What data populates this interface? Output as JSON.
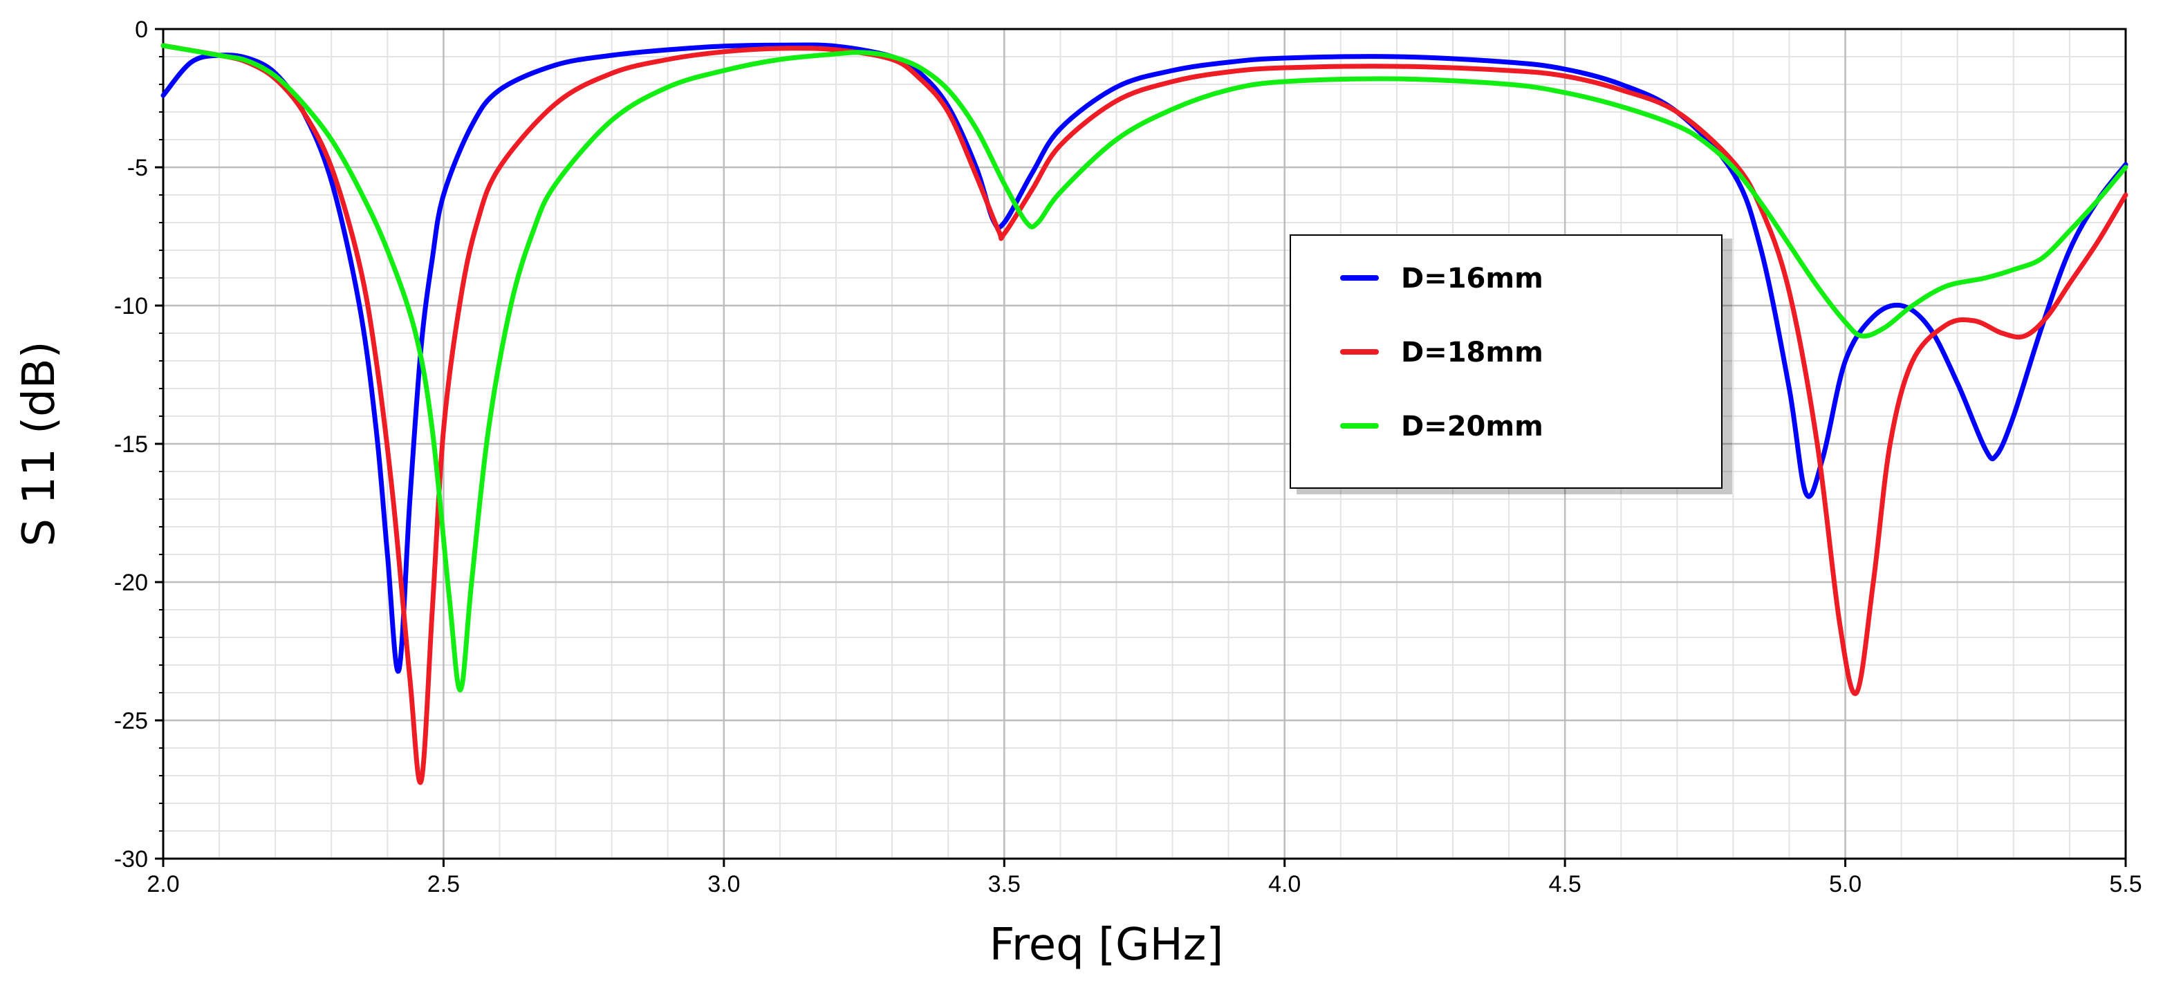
{
  "chart_data": {
    "type": "line",
    "title": "",
    "xlabel": "Freq [GHz]",
    "ylabel": "S 11 (dB)",
    "xlim": [
      2.0,
      5.5
    ],
    "ylim": [
      -30,
      0
    ],
    "x_ticks": [
      2.0,
      2.5,
      3.0,
      3.5,
      4.0,
      4.5,
      5.0,
      5.5
    ],
    "x_tick_labels": [
      "2.0",
      "2.5",
      "3.0",
      "3.5",
      "4.0",
      "4.5",
      "5.0",
      "5.5"
    ],
    "y_ticks": [
      0,
      -5,
      -10,
      -15,
      -20,
      -25,
      -30
    ],
    "y_tick_labels": [
      "0",
      "-5",
      "-10",
      "-15",
      "-20",
      "-25",
      "-30"
    ],
    "grid": true,
    "legend_position": "right-center",
    "series": [
      {
        "name": "D=16mm",
        "color": "#0000ff",
        "points": [
          [
            2.0,
            -2.4
          ],
          [
            2.05,
            -1.2
          ],
          [
            2.1,
            -0.95
          ],
          [
            2.15,
            -1.05
          ],
          [
            2.2,
            -1.6
          ],
          [
            2.25,
            -3.0
          ],
          [
            2.3,
            -5.5
          ],
          [
            2.35,
            -10.0
          ],
          [
            2.38,
            -14.5
          ],
          [
            2.4,
            -19.0
          ],
          [
            2.42,
            -23.2
          ],
          [
            2.44,
            -17.0
          ],
          [
            2.46,
            -11.5
          ],
          [
            2.48,
            -8.3
          ],
          [
            2.5,
            -6.0
          ],
          [
            2.55,
            -3.5
          ],
          [
            2.6,
            -2.2
          ],
          [
            2.7,
            -1.3
          ],
          [
            2.8,
            -0.95
          ],
          [
            2.9,
            -0.75
          ],
          [
            3.0,
            -0.62
          ],
          [
            3.1,
            -0.58
          ],
          [
            3.2,
            -0.62
          ],
          [
            3.3,
            -1.0
          ],
          [
            3.35,
            -1.6
          ],
          [
            3.4,
            -2.8
          ],
          [
            3.45,
            -5.0
          ],
          [
            3.48,
            -6.9
          ],
          [
            3.5,
            -7.0
          ],
          [
            3.55,
            -5.2
          ],
          [
            3.6,
            -3.6
          ],
          [
            3.7,
            -2.1
          ],
          [
            3.8,
            -1.5
          ],
          [
            3.9,
            -1.2
          ],
          [
            4.0,
            -1.05
          ],
          [
            4.2,
            -1.0
          ],
          [
            4.4,
            -1.2
          ],
          [
            4.5,
            -1.45
          ],
          [
            4.6,
            -2.0
          ],
          [
            4.7,
            -3.0
          ],
          [
            4.8,
            -5.2
          ],
          [
            4.85,
            -8.0
          ],
          [
            4.9,
            -13.0
          ],
          [
            4.93,
            -16.8
          ],
          [
            4.96,
            -15.5
          ],
          [
            5.0,
            -12.0
          ],
          [
            5.05,
            -10.4
          ],
          [
            5.1,
            -10.0
          ],
          [
            5.15,
            -10.8
          ],
          [
            5.2,
            -12.8
          ],
          [
            5.25,
            -15.2
          ],
          [
            5.27,
            -15.4
          ],
          [
            5.3,
            -14.0
          ],
          [
            5.35,
            -10.8
          ],
          [
            5.4,
            -8.0
          ],
          [
            5.45,
            -6.2
          ],
          [
            5.5,
            -4.9
          ]
        ]
      },
      {
        "name": "D=18mm",
        "color": "#ee1c24",
        "points": [
          [
            2.0,
            -0.6
          ],
          [
            2.1,
            -0.95
          ],
          [
            2.15,
            -1.2
          ],
          [
            2.2,
            -1.8
          ],
          [
            2.25,
            -3.0
          ],
          [
            2.3,
            -5.0
          ],
          [
            2.35,
            -8.5
          ],
          [
            2.38,
            -12.0
          ],
          [
            2.41,
            -17.0
          ],
          [
            2.44,
            -23.5
          ],
          [
            2.46,
            -27.2
          ],
          [
            2.48,
            -21.0
          ],
          [
            2.5,
            -14.5
          ],
          [
            2.53,
            -9.8
          ],
          [
            2.56,
            -7.0
          ],
          [
            2.6,
            -5.0
          ],
          [
            2.7,
            -2.7
          ],
          [
            2.8,
            -1.6
          ],
          [
            2.9,
            -1.1
          ],
          [
            3.0,
            -0.82
          ],
          [
            3.1,
            -0.7
          ],
          [
            3.2,
            -0.75
          ],
          [
            3.3,
            -1.1
          ],
          [
            3.35,
            -1.8
          ],
          [
            3.4,
            -3.0
          ],
          [
            3.45,
            -5.3
          ],
          [
            3.49,
            -7.3
          ],
          [
            3.5,
            -7.4
          ],
          [
            3.55,
            -5.8
          ],
          [
            3.6,
            -4.2
          ],
          [
            3.7,
            -2.6
          ],
          [
            3.8,
            -1.9
          ],
          [
            3.9,
            -1.55
          ],
          [
            4.0,
            -1.4
          ],
          [
            4.2,
            -1.35
          ],
          [
            4.4,
            -1.5
          ],
          [
            4.5,
            -1.7
          ],
          [
            4.6,
            -2.2
          ],
          [
            4.7,
            -3.0
          ],
          [
            4.8,
            -4.8
          ],
          [
            4.85,
            -6.5
          ],
          [
            4.9,
            -9.5
          ],
          [
            4.95,
            -15.0
          ],
          [
            4.99,
            -21.5
          ],
          [
            5.02,
            -24.0
          ],
          [
            5.05,
            -20.0
          ],
          [
            5.08,
            -15.0
          ],
          [
            5.12,
            -12.0
          ],
          [
            5.18,
            -10.7
          ],
          [
            5.23,
            -10.55
          ],
          [
            5.28,
            -11.0
          ],
          [
            5.32,
            -11.1
          ],
          [
            5.36,
            -10.4
          ],
          [
            5.4,
            -9.2
          ],
          [
            5.45,
            -7.7
          ],
          [
            5.5,
            -6.0
          ]
        ]
      },
      {
        "name": "D=20mm",
        "color": "#12ee12",
        "points": [
          [
            2.0,
            -0.6
          ],
          [
            2.1,
            -0.95
          ],
          [
            2.15,
            -1.15
          ],
          [
            2.2,
            -1.7
          ],
          [
            2.25,
            -2.7
          ],
          [
            2.3,
            -4.0
          ],
          [
            2.35,
            -5.8
          ],
          [
            2.4,
            -8.0
          ],
          [
            2.45,
            -11.0
          ],
          [
            2.48,
            -14.5
          ],
          [
            2.51,
            -20.5
          ],
          [
            2.53,
            -23.9
          ],
          [
            2.55,
            -20.0
          ],
          [
            2.58,
            -14.5
          ],
          [
            2.62,
            -10.0
          ],
          [
            2.66,
            -7.3
          ],
          [
            2.7,
            -5.6
          ],
          [
            2.8,
            -3.3
          ],
          [
            2.9,
            -2.1
          ],
          [
            3.0,
            -1.5
          ],
          [
            3.1,
            -1.1
          ],
          [
            3.2,
            -0.9
          ],
          [
            3.25,
            -0.85
          ],
          [
            3.3,
            -1.0
          ],
          [
            3.35,
            -1.4
          ],
          [
            3.4,
            -2.2
          ],
          [
            3.45,
            -3.6
          ],
          [
            3.5,
            -5.6
          ],
          [
            3.54,
            -7.0
          ],
          [
            3.56,
            -7.0
          ],
          [
            3.6,
            -5.9
          ],
          [
            3.7,
            -4.0
          ],
          [
            3.8,
            -2.9
          ],
          [
            3.9,
            -2.2
          ],
          [
            4.0,
            -1.9
          ],
          [
            4.2,
            -1.8
          ],
          [
            4.4,
            -2.0
          ],
          [
            4.5,
            -2.3
          ],
          [
            4.6,
            -2.8
          ],
          [
            4.7,
            -3.5
          ],
          [
            4.75,
            -4.1
          ],
          [
            4.8,
            -5.0
          ],
          [
            4.85,
            -6.3
          ],
          [
            4.9,
            -7.8
          ],
          [
            4.95,
            -9.3
          ],
          [
            5.0,
            -10.6
          ],
          [
            5.03,
            -11.1
          ],
          [
            5.07,
            -10.8
          ],
          [
            5.12,
            -10.0
          ],
          [
            5.18,
            -9.3
          ],
          [
            5.25,
            -9.0
          ],
          [
            5.3,
            -8.7
          ],
          [
            5.35,
            -8.3
          ],
          [
            5.4,
            -7.3
          ],
          [
            5.45,
            -6.2
          ],
          [
            5.5,
            -5.0
          ]
        ]
      }
    ]
  }
}
